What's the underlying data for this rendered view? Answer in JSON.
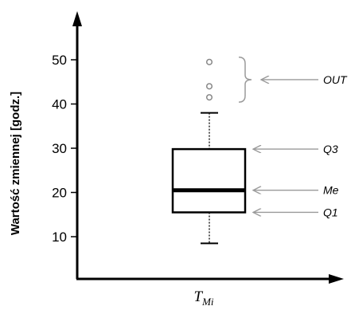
{
  "chart_data": {
    "type": "boxplot",
    "ylabel": "Wartość zmiennej [godz.]",
    "xlabel": {
      "main": "T",
      "subscript": "Mi"
    },
    "yticks": [
      10,
      20,
      30,
      40,
      50
    ],
    "ylim": [
      3,
      63
    ],
    "box": {
      "whisker_low": 8.5,
      "q1": 15.5,
      "median": 20.5,
      "q3": 29.8,
      "whisker_high": 38
    },
    "outliers": [
      41.5,
      44,
      49.5
    ],
    "annotations": [
      {
        "label": "OUT",
        "target": "outliers"
      },
      {
        "label": "Q3",
        "target": "q3"
      },
      {
        "label": "Me",
        "target": "median"
      },
      {
        "label": "Q1",
        "target": "q1"
      }
    ]
  }
}
